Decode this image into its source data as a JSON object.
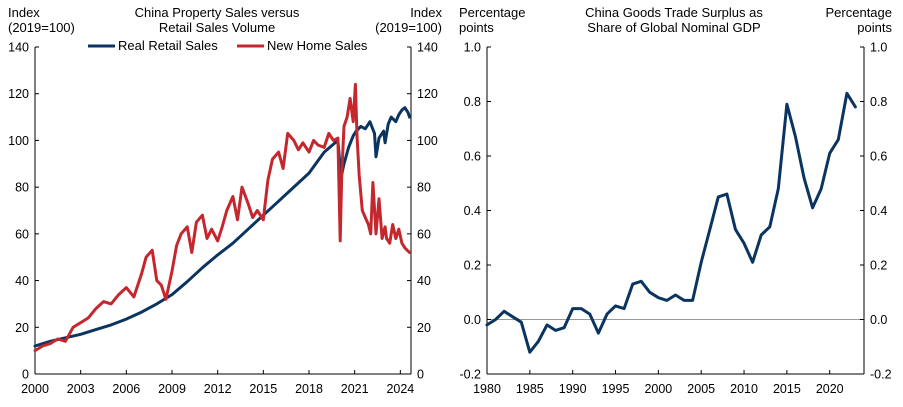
{
  "colors": {
    "navy": "#0b3560",
    "red": "#c4282e",
    "axis": "#000000",
    "zero": "#999999"
  },
  "chart_data": [
    {
      "type": "line",
      "title": "China Property Sales versus Retail Sales Volume",
      "title_lines": [
        "China Property Sales versus",
        "Retail Sales Volume"
      ],
      "ylabel_left_lines": [
        "Index",
        "(2019=100)"
      ],
      "ylabel_right_lines": [
        "Index",
        "(2019=100)"
      ],
      "ylim": [
        0,
        140
      ],
      "yticks": [
        0,
        20,
        40,
        60,
        80,
        100,
        120,
        140
      ],
      "ytick_labels": [
        "0",
        "20",
        "40",
        "60",
        "80",
        "100",
        "120",
        "140"
      ],
      "xlim": [
        2000,
        2024.7
      ],
      "xticks": [
        2000,
        2003,
        2006,
        2009,
        2012,
        2015,
        2018,
        2021,
        2024
      ],
      "xtick_labels": [
        "2000",
        "2003",
        "2006",
        "2009",
        "2012",
        "2015",
        "2018",
        "2021",
        "2024"
      ],
      "legend": [
        "Real Retail Sales",
        "New Home Sales"
      ],
      "series": [
        {
          "name": "Real Retail Sales",
          "color": "#0b3560",
          "x": [
            2000,
            2001,
            2002,
            2003,
            2004,
            2005,
            2006,
            2007,
            2008,
            2009,
            2010,
            2011,
            2012,
            2013,
            2014,
            2015,
            2016,
            2017,
            2018,
            2019,
            2019.9,
            2020.1,
            2020.3,
            2020.6,
            2020.9,
            2021.1,
            2021.4,
            2021.7,
            2022.0,
            2022.3,
            2022.4,
            2022.6,
            2022.9,
            2023.0,
            2023.2,
            2023.4,
            2023.7,
            2023.9,
            2024.1,
            2024.3,
            2024.5,
            2024.6
          ],
          "values": [
            12,
            14,
            15.5,
            17,
            19,
            21,
            23.5,
            26.5,
            30,
            34,
            39.5,
            45.5,
            51,
            56,
            62,
            68,
            74,
            80,
            86,
            95,
            100,
            84,
            90,
            97,
            102,
            104,
            106,
            105,
            108,
            103,
            93,
            101,
            104,
            99,
            107,
            110,
            108,
            111,
            113,
            114,
            112,
            110
          ]
        },
        {
          "name": "New Home Sales",
          "color": "#c4282e",
          "x": [
            2000,
            2000.5,
            2001,
            2001.5,
            2002,
            2002.5,
            2003,
            2003.5,
            2004,
            2004.5,
            2005,
            2005.5,
            2006,
            2006.5,
            2007,
            2007.3,
            2007.7,
            2008,
            2008.3,
            2008.6,
            2009,
            2009.3,
            2009.6,
            2010,
            2010.3,
            2010.6,
            2011,
            2011.3,
            2011.6,
            2012,
            2012.3,
            2012.6,
            2013,
            2013.3,
            2013.6,
            2014,
            2014.3,
            2014.6,
            2015,
            2015.3,
            2015.6,
            2016,
            2016.3,
            2016.6,
            2017,
            2017.3,
            2017.6,
            2018,
            2018.3,
            2018.6,
            2019,
            2019.3,
            2019.6,
            2019.9,
            2020.05,
            2020.15,
            2020.3,
            2020.5,
            2020.7,
            2020.9,
            2021.05,
            2021.15,
            2021.3,
            2021.5,
            2021.7,
            2021.9,
            2022.05,
            2022.2,
            2022.4,
            2022.6,
            2022.8,
            2023.0,
            2023.1,
            2023.3,
            2023.5,
            2023.7,
            2023.9,
            2024.1,
            2024.3,
            2024.6
          ],
          "values": [
            10,
            12,
            13,
            15,
            14,
            20,
            22,
            24,
            28,
            31,
            30,
            34,
            37,
            33,
            43,
            50,
            53,
            40,
            38,
            32,
            44,
            55,
            60,
            63,
            52,
            65,
            68,
            58,
            62,
            57,
            63,
            70,
            76,
            66,
            80,
            73,
            67,
            70,
            66,
            83,
            92,
            95,
            88,
            103,
            100,
            96,
            99,
            95,
            100,
            98,
            97,
            103,
            100,
            101,
            57,
            85,
            106,
            110,
            118,
            108,
            124,
            102,
            85,
            70,
            67,
            64,
            60,
            82,
            60,
            75,
            58,
            63,
            58,
            56,
            64,
            58,
            62,
            56,
            54,
            52
          ]
        }
      ]
    },
    {
      "type": "line",
      "title": "China Goods Trade Surplus as Share of Global Nominal GDP",
      "title_lines": [
        "China Goods Trade Surplus as",
        "Share of Global Nominal GDP"
      ],
      "ylabel_left_lines": [
        "Percentage",
        "points"
      ],
      "ylabel_right_lines": [
        "Percentage",
        "points"
      ],
      "ylim": [
        -0.2,
        1.0
      ],
      "yticks": [
        -0.2,
        0.0,
        0.2,
        0.4,
        0.6,
        0.8,
        1.0
      ],
      "ytick_labels": [
        "-0.2",
        "0.0",
        "0.2",
        "0.4",
        "0.6",
        "0.8",
        "1.0"
      ],
      "xlim": [
        1980,
        2024
      ],
      "xticks": [
        1980,
        1985,
        1990,
        1995,
        2000,
        2005,
        2010,
        2015,
        2020
      ],
      "xtick_labels": [
        "1980",
        "1985",
        "1990",
        "1995",
        "2000",
        "2005",
        "2010",
        "2015",
        "2020"
      ],
      "series": [
        {
          "name": "China Goods Trade Surplus",
          "color": "#0b3560",
          "x": [
            1980,
            1981,
            1982,
            1983,
            1984,
            1985,
            1986,
            1987,
            1988,
            1989,
            1990,
            1991,
            1992,
            1993,
            1994,
            1995,
            1996,
            1997,
            1998,
            1999,
            2000,
            2001,
            2002,
            2003,
            2004,
            2005,
            2006,
            2007,
            2008,
            2009,
            2010,
            2011,
            2012,
            2013,
            2014,
            2015,
            2016,
            2017,
            2018,
            2019,
            2020,
            2021,
            2022,
            2023
          ],
          "values": [
            -0.02,
            0.0,
            0.03,
            0.01,
            -0.01,
            -0.12,
            -0.08,
            -0.02,
            -0.04,
            -0.03,
            0.04,
            0.04,
            0.02,
            -0.05,
            0.02,
            0.05,
            0.04,
            0.13,
            0.14,
            0.1,
            0.08,
            0.07,
            0.09,
            0.07,
            0.07,
            0.21,
            0.33,
            0.45,
            0.46,
            0.33,
            0.28,
            0.21,
            0.31,
            0.34,
            0.48,
            0.79,
            0.67,
            0.52,
            0.41,
            0.48,
            0.61,
            0.66,
            0.83,
            0.78
          ]
        }
      ]
    }
  ]
}
